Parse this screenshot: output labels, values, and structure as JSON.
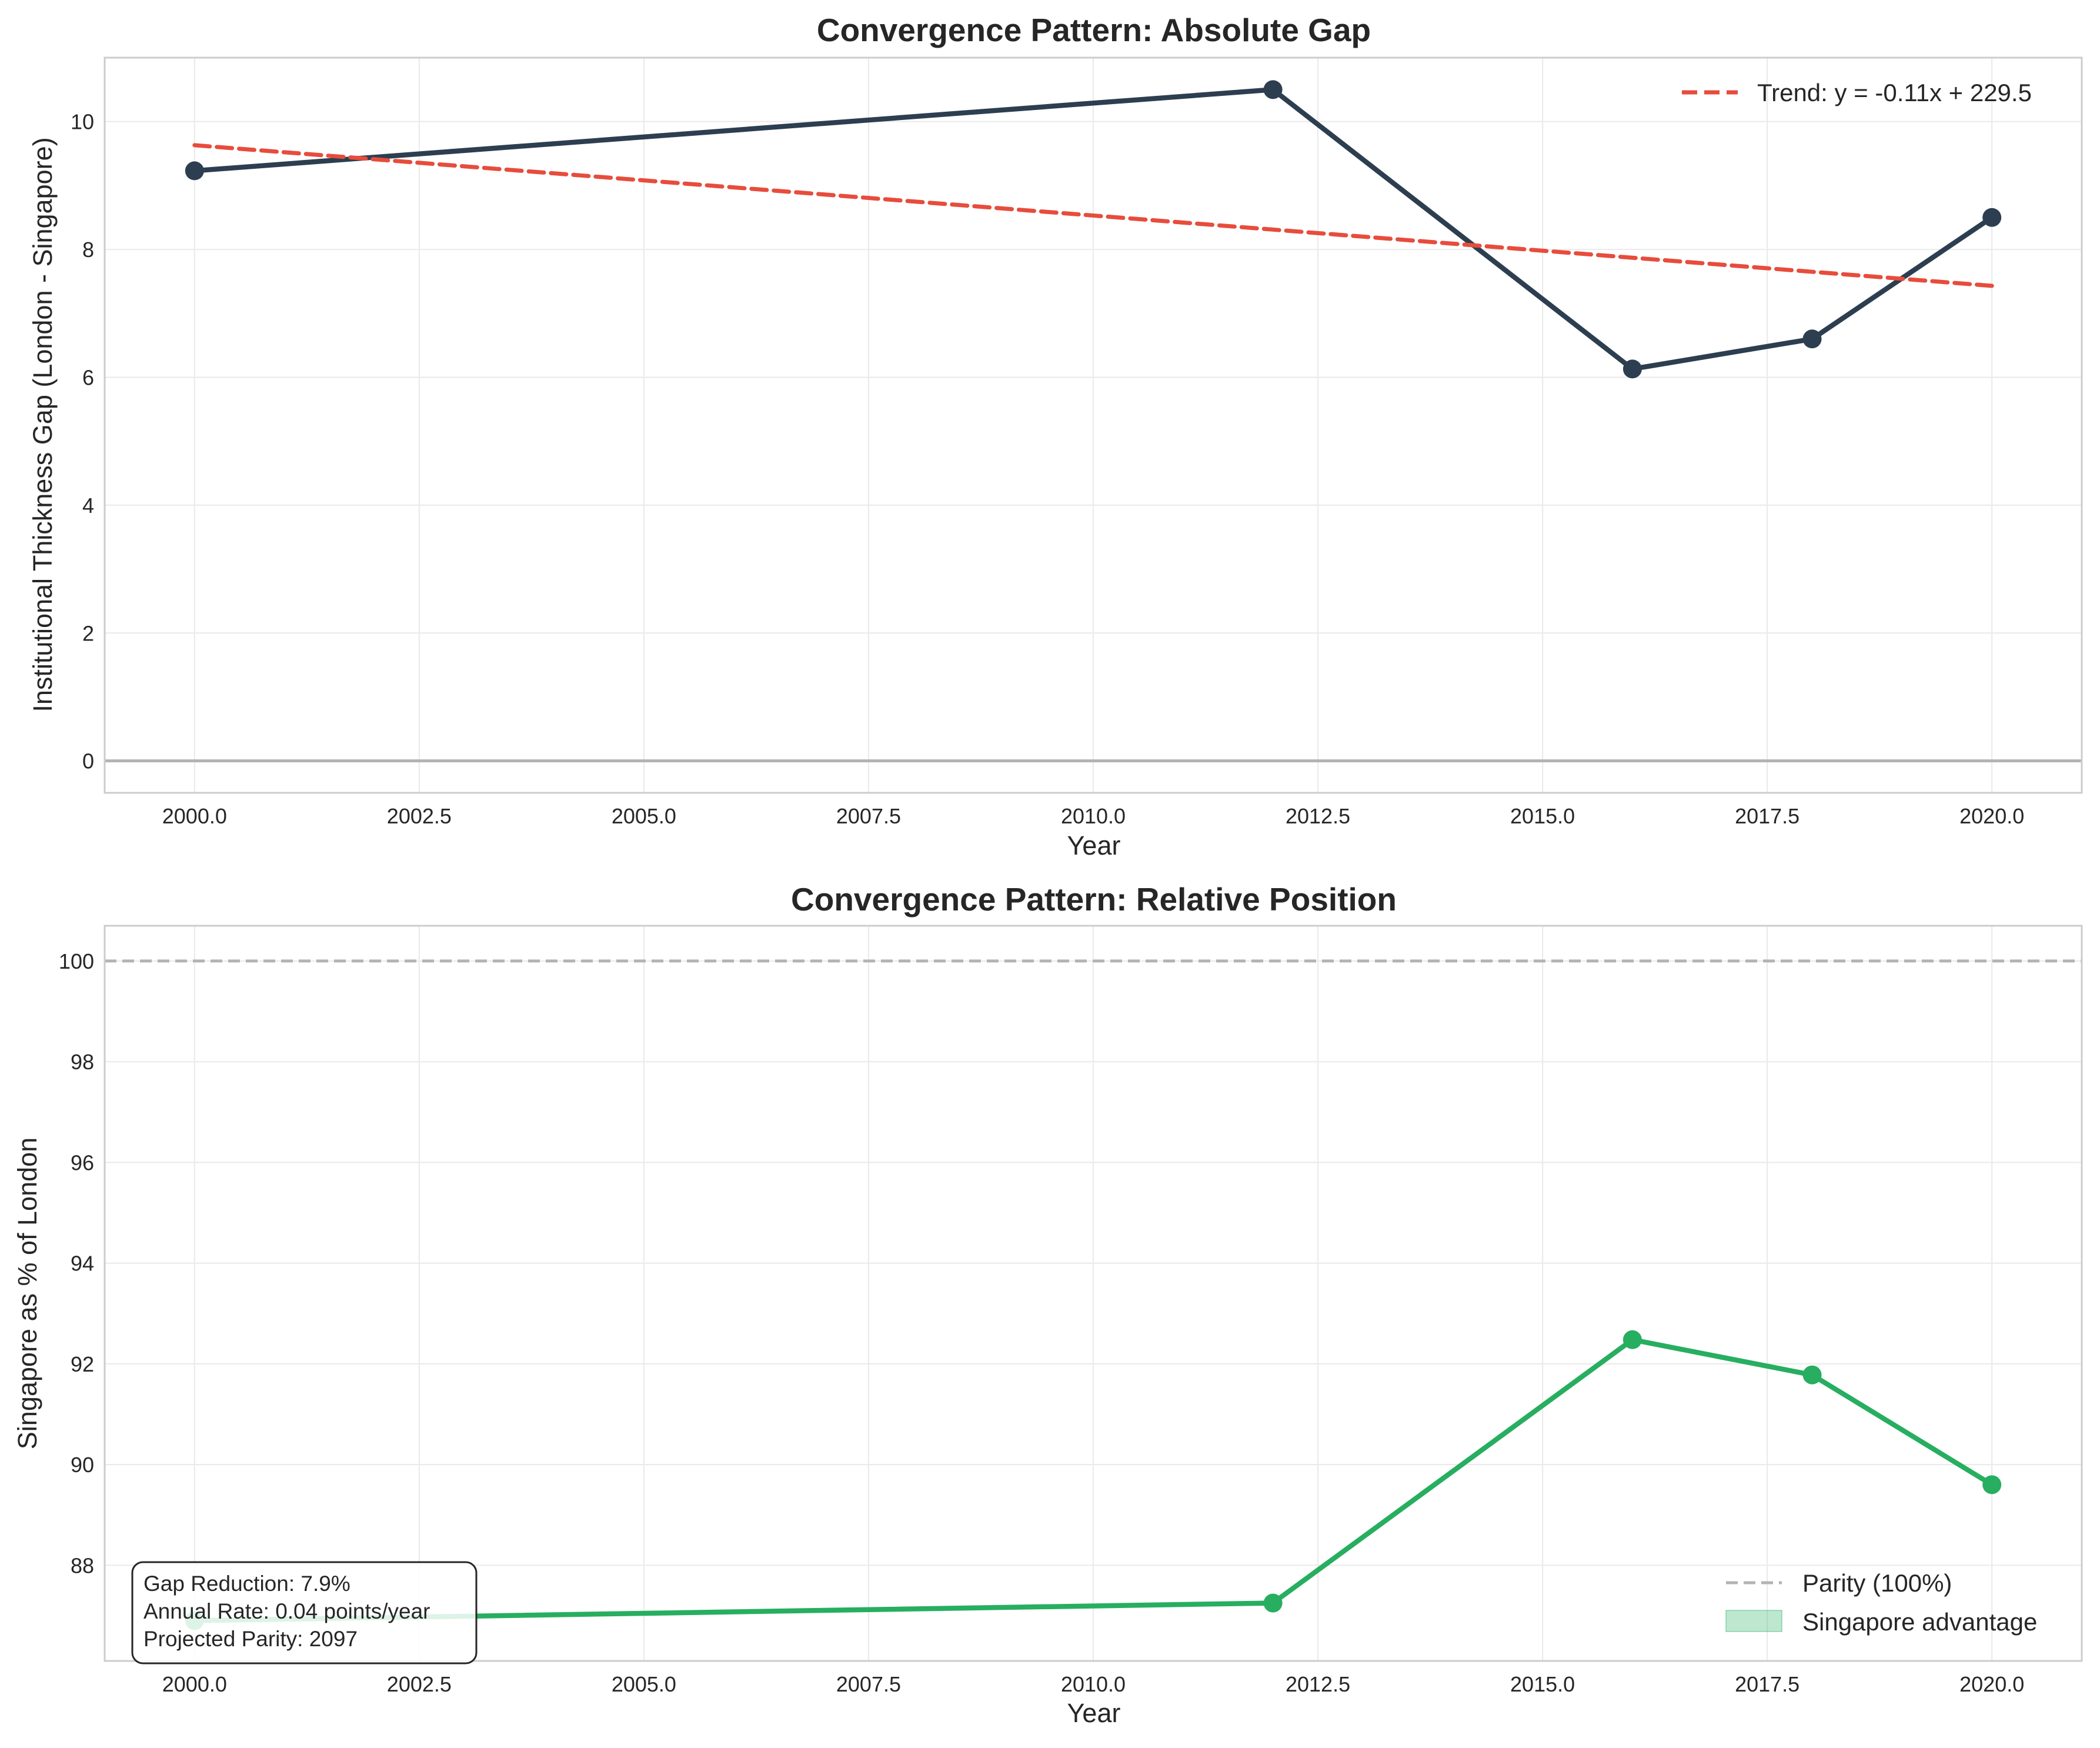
{
  "charts": [
    {
      "title": "Convergence Pattern: Absolute Gap",
      "xlabel": "Year",
      "ylabel": "Institutional Thickness Gap (London - Singapore)",
      "xticks": [
        "2000.0",
        "2002.5",
        "2005.0",
        "2007.5",
        "2010.0",
        "2012.5",
        "2015.0",
        "2017.5",
        "2020.0"
      ],
      "yticks": [
        "0",
        "2",
        "4",
        "6",
        "8",
        "10"
      ],
      "legend": {
        "trend_label": "Trend: y = -0.11x + 229.5"
      }
    },
    {
      "title": "Convergence Pattern: Relative Position",
      "xlabel": "Year",
      "ylabel": "Singapore as % of London",
      "xticks": [
        "2000.0",
        "2002.5",
        "2005.0",
        "2007.5",
        "2010.0",
        "2012.5",
        "2015.0",
        "2017.5",
        "2020.0"
      ],
      "yticks": [
        "88",
        "90",
        "92",
        "94",
        "96",
        "98",
        "100"
      ],
      "legend": {
        "parity_label": "Parity (100%)",
        "advantage_label": "Singapore advantage"
      },
      "annotation": {
        "line1": "Gap Reduction: 7.9%",
        "line2": "Annual Rate: 0.04 points/year",
        "line3": "Projected Parity: 2097"
      }
    }
  ],
  "chart_data": [
    {
      "type": "line",
      "title": "Convergence Pattern: Absolute Gap",
      "xlabel": "Year",
      "ylabel": "Institutional Thickness Gap (London - Singapore)",
      "xlim": [
        1999,
        2021
      ],
      "ylim": [
        -0.5,
        11.0
      ],
      "grid": true,
      "legend_position": "top-right",
      "series": [
        {
          "x": [
            2000,
            2012,
            2016,
            2018,
            2020
          ],
          "values": [
            9.23,
            10.5,
            6.13,
            6.6,
            8.5
          ],
          "color": "#2c3e50"
        },
        {
          "name": "Trend: y = -0.11x + 229.5",
          "x": [
            2000,
            2020
          ],
          "values": [
            9.63,
            7.43
          ],
          "color": "#e74c3c",
          "style": "dashed"
        }
      ],
      "reference_lines": [
        {
          "y": 0,
          "color": "#b3b3b3"
        }
      ]
    },
    {
      "type": "line",
      "title": "Convergence Pattern: Relative Position",
      "xlabel": "Year",
      "ylabel": "Singapore as % of London",
      "xlim": [
        1999,
        2021
      ],
      "ylim": [
        86.1,
        100.7
      ],
      "grid": true,
      "legend_position": "bottom-right",
      "series": [
        {
          "x": [
            2000,
            2012,
            2016,
            2018,
            2020
          ],
          "values": [
            86.9,
            87.25,
            92.48,
            91.78,
            89.6
          ],
          "color": "#27ae60"
        }
      ],
      "reference_lines": [
        {
          "name": "Parity (100%)",
          "y": 100,
          "color": "#b3b3b3",
          "style": "dashed"
        }
      ],
      "fill": {
        "name": "Singapore advantage",
        "color": "#27ae60"
      }
    }
  ]
}
